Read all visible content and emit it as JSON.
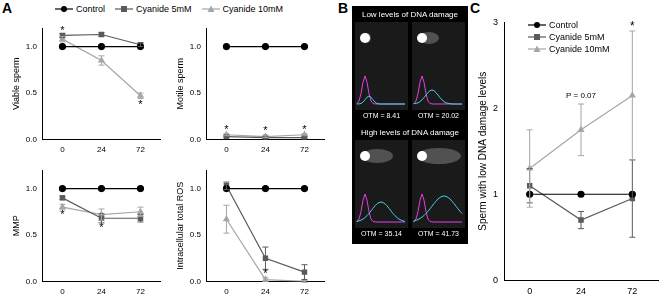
{
  "panel_labels": [
    "A",
    "B",
    "C"
  ],
  "chart_data": [
    {
      "type": "line",
      "y_label": "Viable sperm",
      "categories": [
        "0",
        "24",
        "72"
      ],
      "ylim": [
        0,
        1.2
      ],
      "yticks": [
        {
          "value": 0,
          "label": "0.0"
        },
        {
          "value": 0.5,
          "label": "0.5"
        },
        {
          "value": 1,
          "label": "1.0"
        }
      ],
      "grid": false,
      "legend": "top",
      "series": [
        {
          "name": "Control",
          "color": "#000000",
          "marker": "circle",
          "values": [
            1,
            1,
            1
          ],
          "errors": [
            0,
            0,
            0
          ]
        },
        {
          "name": "Cyanide 5mM",
          "color": "#5a5a5a",
          "marker": "square",
          "values": [
            1.12,
            1.13,
            1.02
          ],
          "errors": [
            0.02,
            0.02,
            0.02
          ]
        },
        {
          "name": "Cyanide 10mM",
          "color": "#a6a6a6",
          "marker": "triangle",
          "values": [
            1.08,
            0.85,
            0.47
          ],
          "errors": [
            0.03,
            0.05,
            0.03
          ]
        }
      ],
      "annotations": [
        {
          "x": "0",
          "y": 1.17,
          "text": "*"
        },
        {
          "x": "72",
          "y": 0.37,
          "text": "*"
        }
      ]
    },
    {
      "type": "line",
      "y_label": "Motile sperm",
      "categories": [
        "0",
        "24",
        "72"
      ],
      "ylim": [
        0,
        1.2
      ],
      "yticks": [
        {
          "value": 0,
          "label": "0.0"
        },
        {
          "value": 0.5,
          "label": "0.5"
        },
        {
          "value": 1,
          "label": "1.0"
        }
      ],
      "grid": false,
      "series": [
        {
          "name": "Control",
          "color": "#000000",
          "marker": "circle",
          "values": [
            1,
            1,
            1
          ],
          "errors": [
            0,
            0,
            0
          ]
        },
        {
          "name": "Cyanide 5mM",
          "color": "#5a5a5a",
          "marker": "square",
          "values": [
            0.03,
            0.02,
            0.02
          ],
          "errors": [
            0.01,
            0.01,
            0.01
          ]
        },
        {
          "name": "Cyanide 10mM",
          "color": "#a6a6a6",
          "marker": "triangle",
          "values": [
            0.05,
            0.03,
            0.05
          ],
          "errors": [
            0.01,
            0.01,
            0.01
          ]
        }
      ],
      "annotations": [
        {
          "x": "0",
          "y": 0.1,
          "text": "*"
        },
        {
          "x": "24",
          "y": 0.09,
          "text": "*"
        },
        {
          "x": "72",
          "y": 0.1,
          "text": "*"
        }
      ]
    },
    {
      "type": "line",
      "y_label": "MMP",
      "categories": [
        "0",
        "24",
        "72"
      ],
      "ylim": [
        0,
        1.2
      ],
      "yticks": [
        {
          "value": 0,
          "label": "0.0"
        },
        {
          "value": 0.5,
          "label": "0.5"
        },
        {
          "value": 1,
          "label": "1.0"
        }
      ],
      "grid": false,
      "series": [
        {
          "name": "Control",
          "color": "#000000",
          "marker": "circle",
          "values": [
            1,
            1,
            1
          ],
          "errors": [
            0,
            0,
            0
          ]
        },
        {
          "name": "Cyanide 5mM",
          "color": "#5a5a5a",
          "marker": "square",
          "values": [
            0.9,
            0.68,
            0.68
          ],
          "errors": [
            0.02,
            0.05,
            0.04
          ]
        },
        {
          "name": "Cyanide 10mM",
          "color": "#a6a6a6",
          "marker": "triangle",
          "values": [
            0.8,
            0.72,
            0.75
          ],
          "errors": [
            0.03,
            0.06,
            0.05
          ]
        }
      ],
      "annotations": [
        {
          "x": "0",
          "y": 0.72,
          "text": "*"
        },
        {
          "x": "24",
          "y": 0.58,
          "text": "*"
        }
      ]
    },
    {
      "type": "line",
      "y_label": "Intracellular total ROS",
      "categories": [
        "0",
        "24",
        "72"
      ],
      "ylim": [
        0,
        1.2
      ],
      "yticks": [
        {
          "value": 0,
          "label": "0.0"
        },
        {
          "value": 0.5,
          "label": "0.5"
        },
        {
          "value": 1,
          "label": "1.0"
        }
      ],
      "grid": false,
      "series": [
        {
          "name": "Control",
          "color": "#000000",
          "marker": "circle",
          "values": [
            1,
            1,
            1
          ],
          "errors": [
            0,
            0,
            0
          ]
        },
        {
          "name": "Cyanide 5mM",
          "color": "#5a5a5a",
          "marker": "square",
          "values": [
            1.03,
            0.25,
            0.1
          ],
          "errors": [
            0.04,
            0.12,
            0.08
          ]
        },
        {
          "name": "Cyanide 10mM",
          "color": "#a6a6a6",
          "marker": "triangle",
          "values": [
            0.67,
            0.02,
            0.0
          ],
          "errors": [
            0.15,
            0.02,
            0.01
          ]
        }
      ],
      "annotations": [
        {
          "x": "24",
          "y": 0.08,
          "text": "*"
        }
      ]
    },
    {
      "type": "line",
      "y_label": "Sperm with low DNA damage levels",
      "categories": [
        "0",
        "24",
        "72"
      ],
      "ylim": [
        0,
        3
      ],
      "yticks": [
        0,
        1,
        2,
        3
      ],
      "grid": false,
      "legend": "upper left",
      "series": [
        {
          "name": "Control",
          "color": "#000000",
          "marker": "circle",
          "values": [
            1,
            1,
            1
          ],
          "errors": [
            0,
            0,
            0
          ]
        },
        {
          "name": "Cyanide 5mM",
          "color": "#5a5a5a",
          "marker": "square",
          "values": [
            1.1,
            0.7,
            0.95
          ],
          "errors": [
            0.2,
            0.1,
            0.45
          ]
        },
        {
          "name": "Cyanide 10mM",
          "color": "#a6a6a6",
          "marker": "triangle",
          "values": [
            1.3,
            1.75,
            2.15
          ],
          "errors": [
            0.45,
            0.3,
            0.75
          ]
        }
      ],
      "annotations": [
        {
          "x": "24",
          "y": 2.15,
          "text": "P = 0.07"
        },
        {
          "x": "72",
          "y": 2.95,
          "text": "*"
        }
      ]
    }
  ],
  "comet_images": {
    "panels": [
      {
        "title": "Low levels of DNA damage",
        "labels": [
          "OTM = 8.41",
          "OTM = 20.02"
        ]
      },
      {
        "title": "High levels of DNA damage",
        "labels": [
          "OTM = 35.14",
          "OTM = 41.73"
        ]
      }
    ]
  }
}
